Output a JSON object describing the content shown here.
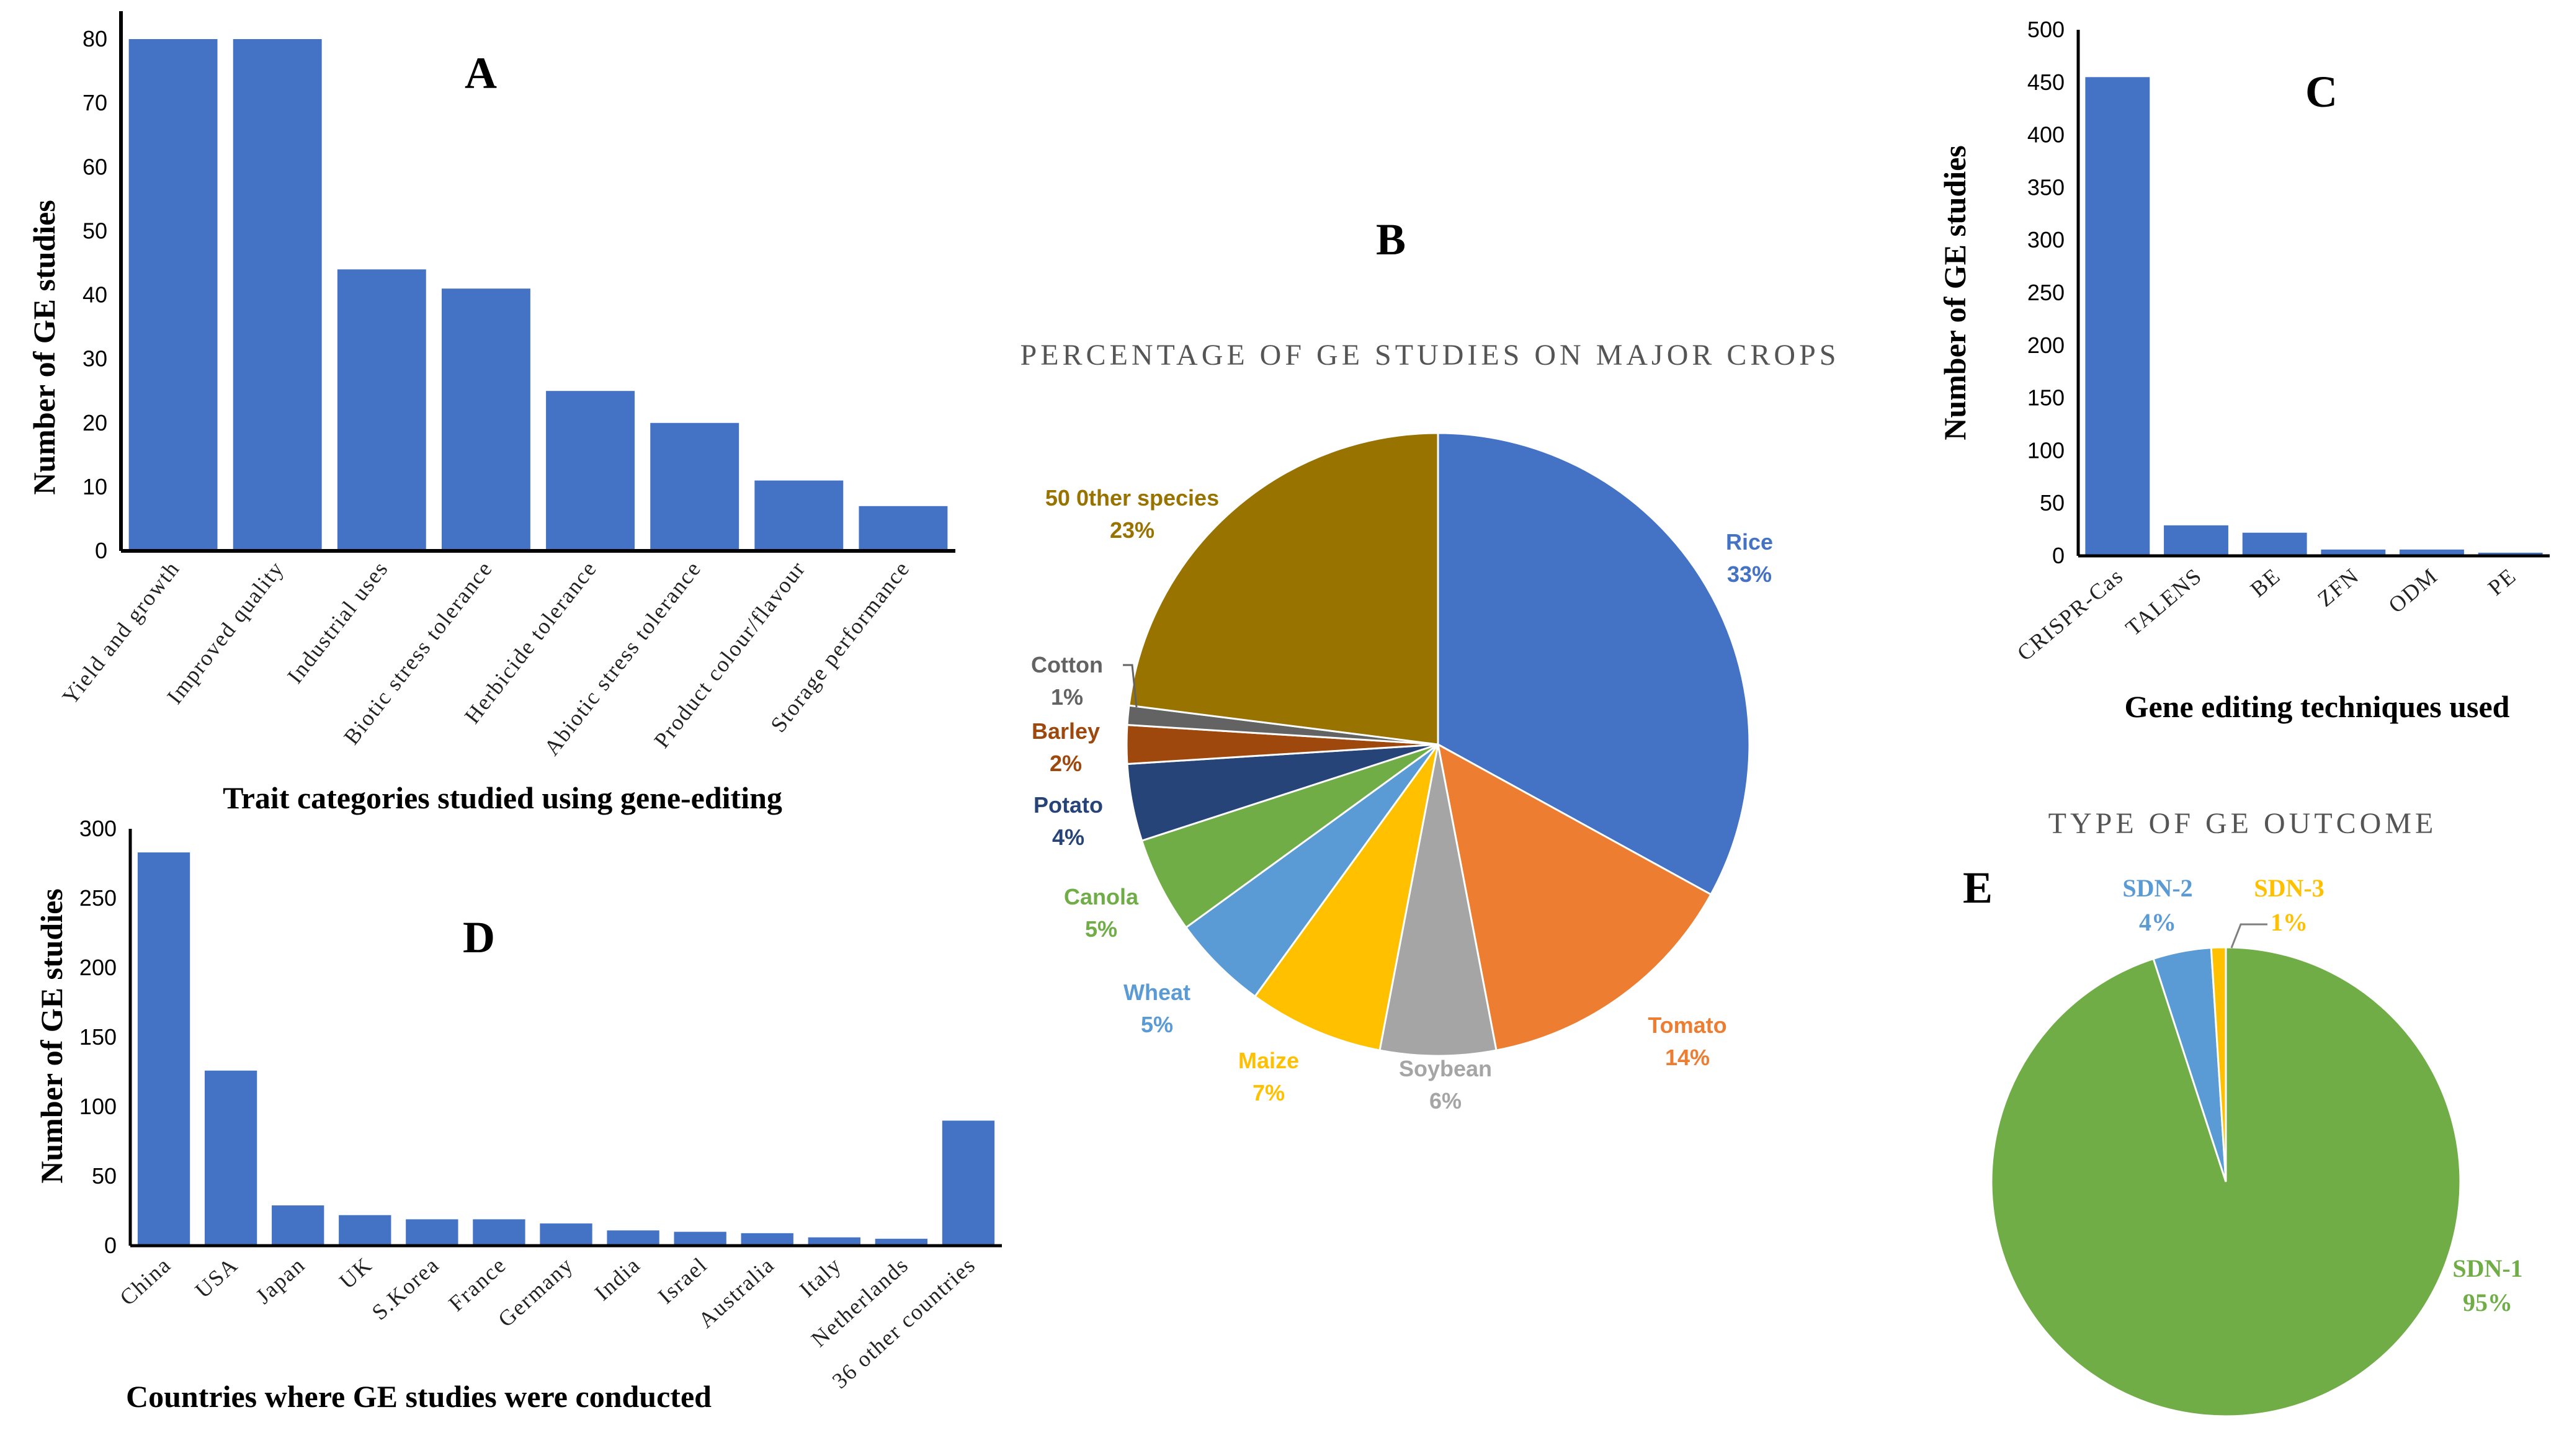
{
  "colors": {
    "bar": "#4472C4",
    "axis": "#000000"
  },
  "chart_data": [
    {
      "panel": "A",
      "type": "bar",
      "title": "",
      "ylabel": "Number of GE studies",
      "xlabel": "Trait categories studied using gene-editing",
      "ylim": [
        0,
        80
      ],
      "yticks": [
        0,
        10,
        20,
        30,
        40,
        50,
        60,
        70,
        80
      ],
      "categories": [
        "Yield and growth",
        "Improved quality",
        "Industrial uses",
        "Biotic stress tolerance",
        "Herbicide tolerance",
        "Abiotic stress tolerance",
        "Product colour/flavour",
        "Storage performance"
      ],
      "values": [
        80,
        80,
        44,
        41,
        25,
        20,
        11,
        7
      ]
    },
    {
      "panel": "B",
      "type": "pie",
      "title": "PERCENTAGE OF GE STUDIES ON MAJOR CROPS",
      "categories": [
        "Rice",
        "Tomato",
        "Soybean",
        "Maize",
        "Wheat",
        "Canola",
        "Potato",
        "Barley",
        "Cotton",
        "50 0ther species"
      ],
      "values": [
        33,
        14,
        6,
        7,
        5,
        5,
        4,
        2,
        1,
        23
      ],
      "labels": [
        "33%",
        "14%",
        "6%",
        "7%",
        "5%",
        "5%",
        "4%",
        "2%",
        "1%",
        "23%"
      ],
      "colors": [
        "#4472C4",
        "#ED7D31",
        "#A5A5A5",
        "#FFC000",
        "#5B9BD5",
        "#70AD47",
        "#264478",
        "#9E480E",
        "#636363",
        "#997300"
      ]
    },
    {
      "panel": "C",
      "type": "bar",
      "title": "",
      "ylabel": "Number of GE studies",
      "xlabel": "Gene editing techniques used",
      "ylim": [
        0,
        500
      ],
      "yticks": [
        0,
        50,
        100,
        150,
        200,
        250,
        300,
        350,
        400,
        450,
        500
      ],
      "categories": [
        "CRISPR-Cas",
        "TALENS",
        "BE",
        "ZFN",
        "ODM",
        "PE"
      ],
      "values": [
        455,
        29,
        22,
        6,
        6,
        3
      ]
    },
    {
      "panel": "D",
      "type": "bar",
      "title": "",
      "ylabel": "Number of GE studies",
      "xlabel": "Countries where GE studies were conducted",
      "ylim": [
        0,
        300
      ],
      "yticks": [
        0,
        50,
        100,
        150,
        200,
        250,
        300
      ],
      "categories": [
        "China",
        "USA",
        "Japan",
        "UK",
        "S.Korea",
        "France",
        "Germany",
        "India",
        "Israel",
        "Australia",
        "Italy",
        "Netherlands",
        "36 other countries"
      ],
      "values": [
        283,
        126,
        29,
        22,
        19,
        19,
        16,
        11,
        10,
        9,
        6,
        5,
        90
      ]
    },
    {
      "panel": "E",
      "type": "pie",
      "title": "TYPE OF GE OUTCOME",
      "categories": [
        "SDN-1",
        "SDN-2",
        "SDN-3"
      ],
      "values": [
        95,
        4,
        1
      ],
      "labels": [
        "95%",
        "4%",
        "1%"
      ],
      "colors": [
        "#70AD47",
        "#5B9BD5",
        "#FFC000"
      ]
    }
  ]
}
